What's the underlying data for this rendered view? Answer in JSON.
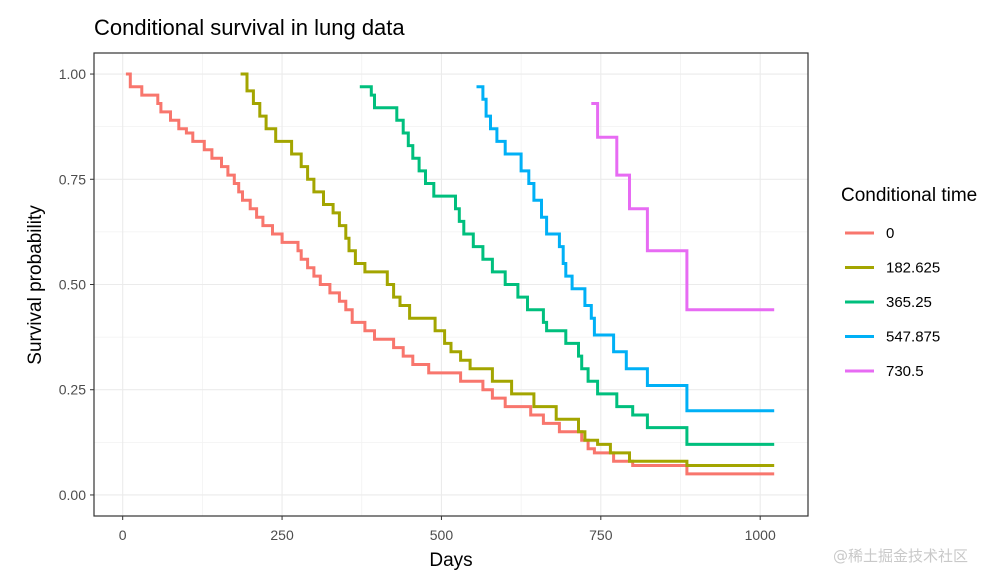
{
  "chart_data": {
    "type": "line",
    "step": true,
    "title": "Conditional survival in lung data",
    "xlabel": "Days",
    "ylabel": "Survival probability",
    "xlim": [
      -45,
      1075
    ],
    "ylim": [
      -0.05,
      1.05
    ],
    "x_ticks": [
      0,
      250,
      500,
      750,
      1000
    ],
    "y_ticks": [
      0.0,
      0.25,
      0.5,
      0.75,
      1.0
    ],
    "x_tick_labels": [
      "0",
      "250",
      "500",
      "750",
      "1000"
    ],
    "y_tick_labels": [
      "0.00",
      "0.25",
      "0.50",
      "0.75",
      "1.00"
    ],
    "grid": true,
    "legend_title": "Conditional time",
    "legend_position": "right",
    "series": [
      {
        "name": "0",
        "color": "#F8766D",
        "points": [
          [
            5,
            1.0
          ],
          [
            12,
            0.97
          ],
          [
            30,
            0.95
          ],
          [
            55,
            0.93
          ],
          [
            60,
            0.91
          ],
          [
            75,
            0.89
          ],
          [
            88,
            0.87
          ],
          [
            100,
            0.86
          ],
          [
            110,
            0.84
          ],
          [
            128,
            0.82
          ],
          [
            140,
            0.8
          ],
          [
            155,
            0.78
          ],
          [
            165,
            0.76
          ],
          [
            175,
            0.74
          ],
          [
            182,
            0.72
          ],
          [
            188,
            0.7
          ],
          [
            200,
            0.68
          ],
          [
            210,
            0.66
          ],
          [
            220,
            0.64
          ],
          [
            235,
            0.62
          ],
          [
            250,
            0.6
          ],
          [
            275,
            0.58
          ],
          [
            280,
            0.56
          ],
          [
            290,
            0.54
          ],
          [
            300,
            0.52
          ],
          [
            310,
            0.5
          ],
          [
            325,
            0.48
          ],
          [
            340,
            0.46
          ],
          [
            350,
            0.44
          ],
          [
            360,
            0.41
          ],
          [
            380,
            0.39
          ],
          [
            395,
            0.37
          ],
          [
            425,
            0.35
          ],
          [
            440,
            0.33
          ],
          [
            455,
            0.31
          ],
          [
            480,
            0.29
          ],
          [
            530,
            0.27
          ],
          [
            565,
            0.25
          ],
          [
            580,
            0.23
          ],
          [
            600,
            0.21
          ],
          [
            640,
            0.19
          ],
          [
            660,
            0.17
          ],
          [
            685,
            0.15
          ],
          [
            720,
            0.13
          ],
          [
            730,
            0.11
          ],
          [
            740,
            0.1
          ],
          [
            770,
            0.08
          ],
          [
            800,
            0.07
          ],
          [
            885,
            0.05
          ],
          [
            1022,
            0.05
          ]
        ]
      },
      {
        "name": "182.625",
        "color": "#A3A500",
        "points": [
          [
            185,
            1.0
          ],
          [
            195,
            0.96
          ],
          [
            205,
            0.93
          ],
          [
            215,
            0.9
          ],
          [
            225,
            0.87
          ],
          [
            240,
            0.84
          ],
          [
            265,
            0.81
          ],
          [
            280,
            0.78
          ],
          [
            290,
            0.75
          ],
          [
            300,
            0.72
          ],
          [
            315,
            0.69
          ],
          [
            330,
            0.67
          ],
          [
            340,
            0.64
          ],
          [
            350,
            0.61
          ],
          [
            355,
            0.58
          ],
          [
            365,
            0.55
          ],
          [
            380,
            0.53
          ],
          [
            415,
            0.5
          ],
          [
            425,
            0.47
          ],
          [
            435,
            0.45
          ],
          [
            450,
            0.42
          ],
          [
            490,
            0.39
          ],
          [
            505,
            0.36
          ],
          [
            515,
            0.34
          ],
          [
            530,
            0.32
          ],
          [
            545,
            0.3
          ],
          [
            580,
            0.27
          ],
          [
            610,
            0.24
          ],
          [
            645,
            0.21
          ],
          [
            680,
            0.18
          ],
          [
            715,
            0.15
          ],
          [
            725,
            0.13
          ],
          [
            745,
            0.12
          ],
          [
            765,
            0.1
          ],
          [
            795,
            0.08
          ],
          [
            885,
            0.07
          ],
          [
            1022,
            0.07
          ]
        ]
      },
      {
        "name": "365.25",
        "color": "#00BF7D",
        "points": [
          [
            372,
            0.97
          ],
          [
            390,
            0.95
          ],
          [
            395,
            0.92
          ],
          [
            430,
            0.89
          ],
          [
            440,
            0.86
          ],
          [
            448,
            0.83
          ],
          [
            455,
            0.8
          ],
          [
            465,
            0.77
          ],
          [
            475,
            0.74
          ],
          [
            488,
            0.71
          ],
          [
            522,
            0.68
          ],
          [
            528,
            0.65
          ],
          [
            535,
            0.62
          ],
          [
            550,
            0.59
          ],
          [
            565,
            0.56
          ],
          [
            580,
            0.53
          ],
          [
            600,
            0.5
          ],
          [
            620,
            0.47
          ],
          [
            635,
            0.44
          ],
          [
            660,
            0.41
          ],
          [
            665,
            0.39
          ],
          [
            695,
            0.36
          ],
          [
            715,
            0.33
          ],
          [
            720,
            0.3
          ],
          [
            730,
            0.27
          ],
          [
            745,
            0.24
          ],
          [
            775,
            0.21
          ],
          [
            800,
            0.19
          ],
          [
            823,
            0.16
          ],
          [
            885,
            0.12
          ],
          [
            1022,
            0.12
          ]
        ]
      },
      {
        "name": "547.875",
        "color": "#00B0F6",
        "points": [
          [
            555,
            0.97
          ],
          [
            565,
            0.94
          ],
          [
            570,
            0.9
          ],
          [
            577,
            0.87
          ],
          [
            587,
            0.84
          ],
          [
            600,
            0.81
          ],
          [
            625,
            0.77
          ],
          [
            637,
            0.74
          ],
          [
            645,
            0.7
          ],
          [
            657,
            0.66
          ],
          [
            665,
            0.62
          ],
          [
            685,
            0.59
          ],
          [
            691,
            0.55
          ],
          [
            695,
            0.52
          ],
          [
            705,
            0.49
          ],
          [
            725,
            0.45
          ],
          [
            735,
            0.42
          ],
          [
            740,
            0.38
          ],
          [
            770,
            0.34
          ],
          [
            790,
            0.3
          ],
          [
            823,
            0.26
          ],
          [
            885,
            0.2
          ],
          [
            1022,
            0.2
          ]
        ]
      },
      {
        "name": "730.5",
        "color": "#E76BF3",
        "points": [
          [
            735,
            0.93
          ],
          [
            745,
            0.85
          ],
          [
            775,
            0.76
          ],
          [
            795,
            0.68
          ],
          [
            823,
            0.58
          ],
          [
            885,
            0.44
          ],
          [
            1022,
            0.44
          ]
        ]
      }
    ]
  },
  "watermark": "@稀土掘金技术社区"
}
